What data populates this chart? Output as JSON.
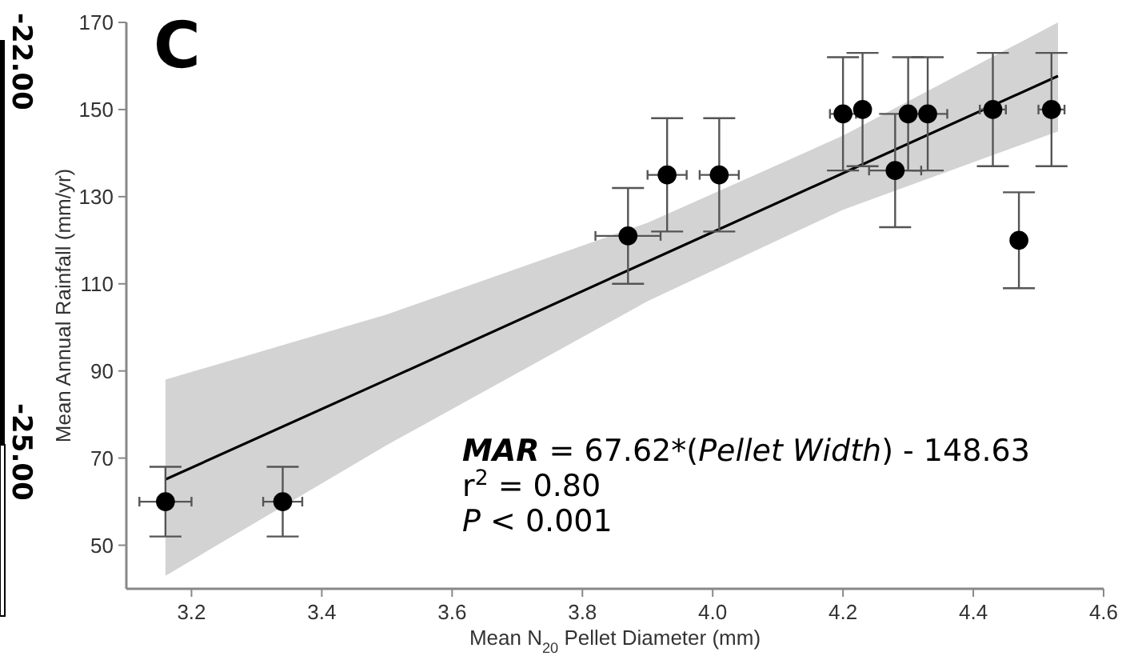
{
  "chart_data": {
    "type": "scatter",
    "xlabel": "Mean N$_{20}$ Pellet Diameter (mm)",
    "ylabel": "Mean Annual Rainfall (mm/yr)",
    "xlim": [
      3.1,
      4.6
    ],
    "ylim": [
      40,
      170
    ],
    "xticks": [
      {
        "value": 3.2,
        "label": "3.2"
      },
      {
        "value": 3.4,
        "label": "3.4"
      },
      {
        "value": 3.6,
        "label": "3.6"
      },
      {
        "value": 3.8,
        "label": "3.8"
      },
      {
        "value": 4.0,
        "label": "4.0"
      },
      {
        "value": 4.2,
        "label": "4.2"
      },
      {
        "value": 4.4,
        "label": "4.4"
      },
      {
        "value": 4.6,
        "label": "4.6"
      }
    ],
    "yticks": [
      50,
      70,
      90,
      110,
      130,
      150,
      170
    ],
    "grid": false,
    "series": [
      {
        "type": "line",
        "color": "#000000",
        "x": [
          3.16,
          3.5,
          3.9,
          4.2,
          4.53
        ],
        "values": [
          65.1,
          88.0,
          115.1,
          135.4,
          157.7
        ],
        "lower": [
          43,
          73,
          106,
          127,
          145
        ],
        "upper": [
          88,
          103,
          124,
          144,
          170
        ]
      },
      {
        "color": "#000000",
        "marker": "circle",
        "x": [
          3.16,
          3.34,
          3.87,
          3.93,
          4.01,
          4.2,
          4.23,
          4.28,
          4.3,
          4.33,
          4.43,
          4.47,
          4.52
        ],
        "values": [
          60,
          60,
          121,
          135,
          135,
          149,
          150,
          136,
          149,
          149,
          150,
          120,
          150
        ],
        "errors": [
          [
            52,
            68
          ],
          [
            52,
            68
          ],
          [
            110,
            132
          ],
          [
            122,
            148
          ],
          [
            122,
            148
          ],
          [
            136,
            162
          ],
          [
            137,
            163
          ],
          [
            123,
            149
          ],
          [
            136,
            162
          ],
          [
            136,
            162
          ],
          [
            137,
            163
          ],
          [
            109,
            131
          ],
          [
            137,
            163
          ]
        ],
        "xerrors": [
          0.04,
          0.03,
          0.05,
          0.03,
          0.03,
          0.02,
          null,
          0.04,
          null,
          0.03,
          0.02,
          null,
          0.02
        ]
      }
    ],
    "annotations": [
      "C",
      "MAR = 67.62*(Pellet Width) - 148.63",
      "r$^{2}$ = 0.80",
      "P < 0.001",
      "-22.00",
      "-25.00"
    ]
  }
}
